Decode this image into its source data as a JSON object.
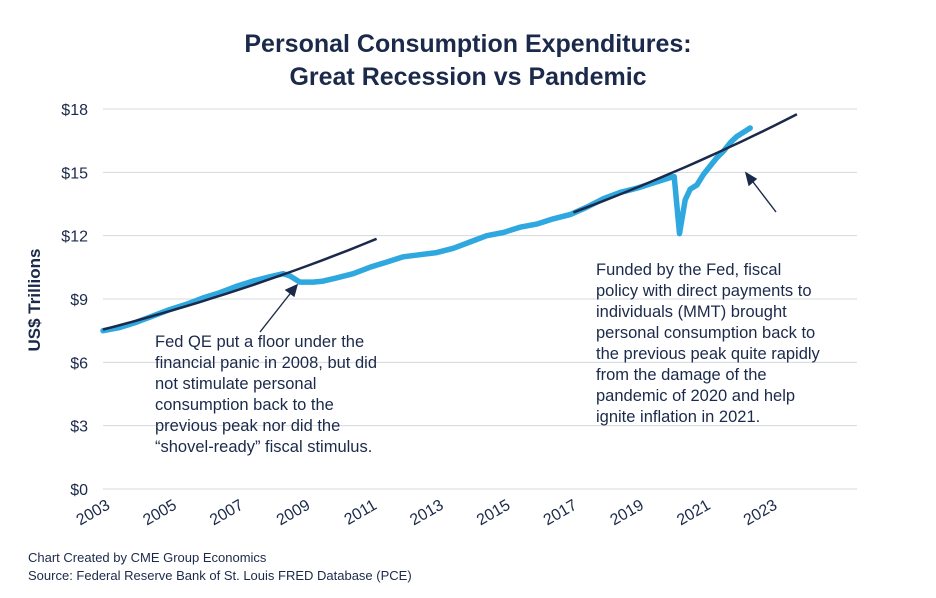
{
  "chart_data": {
    "type": "line",
    "title": "Personal Consumption Expenditures:",
    "subtitle": "Great Recession vs Pandemic",
    "ylabel": "US$ Trillions",
    "xlabel": "",
    "ylim": [
      0,
      18
    ],
    "xlim": [
      2003,
      2025.6
    ],
    "yticks": [
      0,
      3,
      6,
      9,
      12,
      15,
      18
    ],
    "ytick_labels": [
      "$0",
      "$3",
      "$6",
      "$9",
      "$12",
      "$15",
      "$18"
    ],
    "xticks": [
      2003,
      2005,
      2007,
      2009,
      2011,
      2013,
      2015,
      2017,
      2019,
      2021,
      2023
    ],
    "xtick_labels": [
      "2003",
      "2005",
      "2007",
      "2009",
      "2011",
      "2013",
      "2015",
      "2017",
      "2019",
      "2021",
      "2023"
    ],
    "grid": true,
    "series": [
      {
        "color": "#2fa8e0",
        "x": [
          2003.0,
          2003.5,
          2004.0,
          2004.5,
          2005.0,
          2005.5,
          2006.0,
          2006.5,
          2007.0,
          2007.5,
          2008.0,
          2008.4,
          2008.6,
          2008.9,
          2009.3,
          2009.6,
          2010.0,
          2010.5,
          2011.0,
          2011.5,
          2012.0,
          2012.5,
          2013.0,
          2013.5,
          2014.0,
          2014.5,
          2015.0,
          2015.5,
          2016.0,
          2016.5,
          2017.0,
          2017.5,
          2018.0,
          2018.5,
          2019.0,
          2019.5,
          2020.0,
          2020.12,
          2020.28,
          2020.45,
          2020.6,
          2020.8,
          2021.0,
          2021.2,
          2021.4,
          2021.6,
          2021.8,
          2022.0,
          2022.2,
          2022.4
        ],
        "y": [
          7.5,
          7.65,
          7.9,
          8.2,
          8.5,
          8.75,
          9.05,
          9.3,
          9.6,
          9.85,
          10.05,
          10.2,
          10.1,
          9.8,
          9.8,
          9.85,
          10.0,
          10.2,
          10.5,
          10.75,
          11.0,
          11.1,
          11.2,
          11.4,
          11.7,
          12.0,
          12.15,
          12.4,
          12.55,
          12.8,
          13.0,
          13.35,
          13.75,
          14.05,
          14.25,
          14.5,
          14.75,
          14.8,
          12.1,
          13.7,
          14.2,
          14.4,
          14.9,
          15.3,
          15.7,
          16.0,
          16.4,
          16.7,
          16.9,
          17.1
        ]
      }
    ],
    "trendlines": [
      {
        "color": "#1b2a4a",
        "x": [
          2003.0,
          2011.2
        ],
        "y": [
          7.55,
          11.85
        ]
      },
      {
        "color": "#1b2a4a",
        "x": [
          2017.1,
          2023.8
        ],
        "y": [
          13.1,
          17.75
        ]
      }
    ]
  },
  "annotations": {
    "left": [
      "Fed QE put a floor under the",
      "financial panic in 2008, but did",
      "not stimulate personal",
      "consumption back to the",
      "previous peak nor did the",
      "“shovel-ready” fiscal stimulus."
    ],
    "right": [
      "Funded by the Fed, fiscal",
      "policy with direct payments to",
      "individuals (MMT) brought",
      "personal consumption back to",
      "the previous peak quite rapidly",
      "from the damage of the",
      "pandemic of 2020 and help",
      "ignite inflation in 2021."
    ]
  },
  "footer": {
    "line1": "Chart Created by CME Group Economics",
    "line2": "Source: Federal Reserve Bank of St. Louis FRED Database (PCE)"
  }
}
